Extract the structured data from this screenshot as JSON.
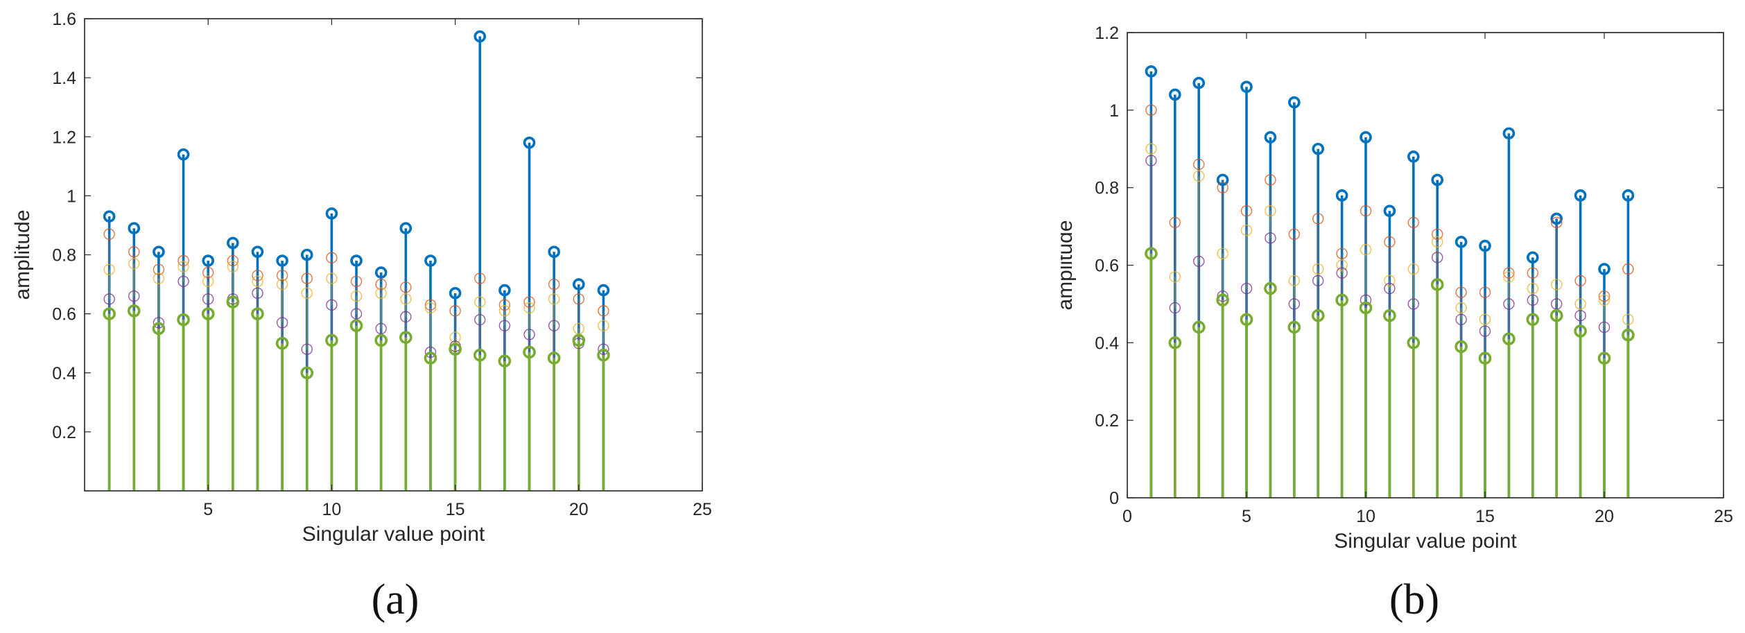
{
  "captions": [
    "(a)",
    "(b)"
  ],
  "chart_data": [
    {
      "type": "stem",
      "xlabel": "Singular value point",
      "ylabel": "amplitude",
      "xlim": [
        0,
        25
      ],
      "ylim": [
        0,
        1.6
      ],
      "xticks": [
        5,
        10,
        15,
        20,
        25
      ],
      "yticks": [
        0.2,
        0.4,
        0.6,
        0.8,
        1,
        1.2,
        1.4,
        1.6
      ],
      "x": [
        1,
        2,
        3,
        4,
        5,
        6,
        7,
        8,
        9,
        10,
        11,
        12,
        13,
        14,
        15,
        16,
        17,
        18,
        19,
        20,
        21
      ],
      "series": [
        {
          "color": "#0072BD",
          "values": [
            0.93,
            0.89,
            0.81,
            1.14,
            0.78,
            0.84,
            0.81,
            0.78,
            0.8,
            0.94,
            0.78,
            0.74,
            0.89,
            0.78,
            0.67,
            1.54,
            0.68,
            1.18,
            0.81,
            0.7,
            0.68
          ]
        },
        {
          "color": "#D95319",
          "values": [
            0.87,
            0.81,
            0.75,
            0.78,
            0.74,
            0.78,
            0.73,
            0.73,
            0.72,
            0.79,
            0.71,
            0.7,
            0.69,
            0.63,
            0.61,
            0.72,
            0.63,
            0.64,
            0.7,
            0.65,
            0.61
          ]
        },
        {
          "color": "#EDB120",
          "values": [
            0.75,
            0.77,
            0.72,
            0.76,
            0.71,
            0.76,
            0.71,
            0.7,
            0.67,
            0.72,
            0.66,
            0.67,
            0.65,
            0.62,
            0.52,
            0.64,
            0.61,
            0.62,
            0.65,
            0.55,
            0.56
          ]
        },
        {
          "color": "#7E2F8E",
          "values": [
            0.65,
            0.66,
            0.57,
            0.71,
            0.65,
            0.65,
            0.67,
            0.57,
            0.48,
            0.63,
            0.6,
            0.55,
            0.59,
            0.47,
            0.49,
            0.58,
            0.56,
            0.53,
            0.56,
            0.5,
            0.48
          ]
        },
        {
          "color": "#77AC30",
          "values": [
            0.6,
            0.61,
            0.55,
            0.58,
            0.6,
            0.64,
            0.6,
            0.5,
            0.4,
            0.51,
            0.56,
            0.51,
            0.52,
            0.45,
            0.48,
            0.46,
            0.44,
            0.47,
            0.45,
            0.51,
            0.46
          ]
        }
      ]
    },
    {
      "type": "stem",
      "xlabel": "Singular value point",
      "ylabel": "amplitude",
      "xlim": [
        0,
        25
      ],
      "ylim": [
        0,
        1.2
      ],
      "xticks": [
        0,
        5,
        10,
        15,
        20,
        25
      ],
      "yticks": [
        0,
        0.2,
        0.4,
        0.6,
        0.8,
        1,
        1.2
      ],
      "x": [
        1,
        2,
        3,
        4,
        5,
        6,
        7,
        8,
        9,
        10,
        11,
        12,
        13,
        14,
        15,
        16,
        17,
        18,
        19,
        20,
        21
      ],
      "series": [
        {
          "color": "#0072BD",
          "values": [
            1.1,
            1.04,
            1.07,
            0.82,
            1.06,
            0.93,
            1.02,
            0.9,
            0.78,
            0.93,
            0.74,
            0.88,
            0.82,
            0.66,
            0.65,
            0.94,
            0.62,
            0.72,
            0.78,
            0.59,
            0.78
          ]
        },
        {
          "color": "#D95319",
          "values": [
            1.0,
            0.71,
            0.86,
            0.8,
            0.74,
            0.82,
            0.68,
            0.72,
            0.63,
            0.74,
            0.66,
            0.71,
            0.68,
            0.53,
            0.53,
            0.58,
            0.58,
            0.71,
            0.56,
            0.52,
            0.59
          ]
        },
        {
          "color": "#EDB120",
          "values": [
            0.9,
            0.57,
            0.83,
            0.63,
            0.69,
            0.74,
            0.56,
            0.59,
            0.6,
            0.64,
            0.56,
            0.59,
            0.66,
            0.49,
            0.46,
            0.57,
            0.54,
            0.55,
            0.5,
            0.51,
            0.46
          ]
        },
        {
          "color": "#7E2F8E",
          "values": [
            0.87,
            0.49,
            0.61,
            0.52,
            0.54,
            0.67,
            0.5,
            0.56,
            0.58,
            0.51,
            0.54,
            0.5,
            0.62,
            0.46,
            0.43,
            0.5,
            0.51,
            0.5,
            0.47,
            0.44,
            0.42
          ]
        },
        {
          "color": "#77AC30",
          "values": [
            0.63,
            0.4,
            0.44,
            0.51,
            0.46,
            0.54,
            0.44,
            0.47,
            0.51,
            0.49,
            0.47,
            0.4,
            0.55,
            0.39,
            0.36,
            0.41,
            0.46,
            0.47,
            0.43,
            0.36,
            0.42
          ]
        }
      ]
    }
  ]
}
